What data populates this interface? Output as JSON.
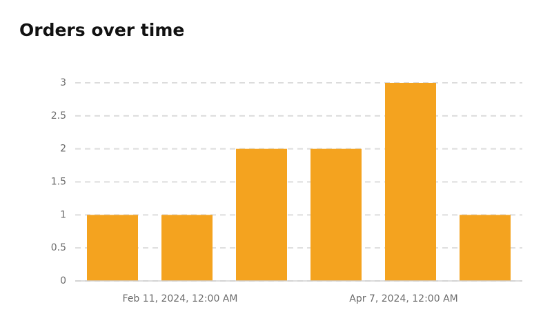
{
  "chart_data": {
    "type": "bar",
    "title": "Orders over time",
    "categories": [
      null,
      "Feb 11, 2024, 12:00 AM",
      null,
      null,
      "Apr 7, 2024, 12:00 AM",
      null
    ],
    "values": [
      1,
      1,
      2,
      2,
      3,
      1
    ],
    "color": "#f4a31f",
    "ylim": [
      0,
      3
    ],
    "yticks": [
      0,
      0.5,
      1,
      1.5,
      2,
      2.5,
      3
    ],
    "grid": true
  }
}
